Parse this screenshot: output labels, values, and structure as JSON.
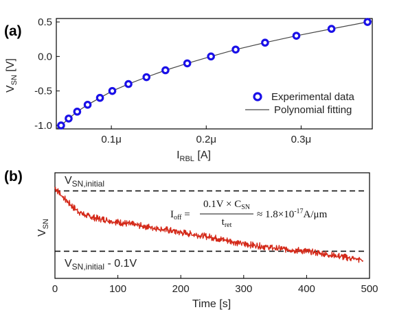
{
  "panel_labels": {
    "a": "(a)",
    "b": "(b)"
  },
  "colors": {
    "marker": "#1a10e8",
    "fit": "#444444",
    "trace": "#d42a1a",
    "axis": "#000000"
  },
  "chart_data": [
    {
      "id": "a",
      "type": "scatter",
      "xlabel": {
        "main": "I",
        "sub": "RBL",
        "tail": " [A]"
      },
      "ylabel": {
        "main": "V",
        "sub": "SN",
        "tail": " [V]"
      },
      "xlim": [
        0.042,
        0.375
      ],
      "ylim": [
        -1.05,
        0.55
      ],
      "x_unit_suffix": "μ",
      "xticks": [
        0.1,
        0.2,
        0.3
      ],
      "xtick_labels": [
        "0.1μ",
        "0.2μ",
        "0.3μ"
      ],
      "yticks": [
        0.5,
        0.0,
        -0.5,
        -1.0
      ],
      "ytick_labels": [
        "0.5",
        "0.0",
        "-0.5",
        "-1.0"
      ],
      "grid": false,
      "legend_position": "bottom-right",
      "series": [
        {
          "name": "Experimental data",
          "style": "markers",
          "x": [
            0.047,
            0.055,
            0.064,
            0.075,
            0.088,
            0.101,
            0.118,
            0.137,
            0.157,
            0.18,
            0.205,
            0.231,
            0.262,
            0.295,
            0.332,
            0.37
          ],
          "y": [
            -1.0,
            -0.9,
            -0.8,
            -0.7,
            -0.6,
            -0.5,
            -0.4,
            -0.3,
            -0.2,
            -0.1,
            0.0,
            0.1,
            0.2,
            0.3,
            0.4,
            0.5
          ]
        },
        {
          "name": "Polynomial fitting",
          "style": "line",
          "x": [
            0.042,
            0.047,
            0.055,
            0.064,
            0.075,
            0.088,
            0.101,
            0.118,
            0.137,
            0.157,
            0.18,
            0.205,
            0.231,
            0.262,
            0.295,
            0.332,
            0.37,
            0.375
          ],
          "y": [
            -1.06,
            -1.0,
            -0.9,
            -0.8,
            -0.7,
            -0.6,
            -0.5,
            -0.4,
            -0.3,
            -0.2,
            -0.1,
            0.0,
            0.1,
            0.2,
            0.3,
            0.4,
            0.5,
            0.512
          ]
        }
      ]
    },
    {
      "id": "b",
      "type": "line",
      "xlabel": "Time [s]",
      "ylabel": {
        "main": "V",
        "sub": "SN"
      },
      "xlim": [
        0,
        500
      ],
      "ylim": [
        -0.145,
        0.03
      ],
      "xticks": [
        0,
        100,
        200,
        300,
        400,
        500
      ],
      "xtick_labels": [
        "0",
        "100",
        "200",
        "300",
        "400",
        "500"
      ],
      "yticks": [],
      "grid": false,
      "reference_lines": [
        {
          "y": 0.0,
          "style": "dashed",
          "label": {
            "main": "V",
            "sub": "SN,initial",
            "tail": ""
          }
        },
        {
          "y": -0.1,
          "style": "dashed",
          "label": {
            "main": "V",
            "sub": "SN,initial",
            "tail": " - 0.1V"
          }
        }
      ],
      "annotation": {
        "lhs": "I",
        "lhs_sub": "off",
        "numerator": "0.1V × C",
        "numerator_sub": "SN",
        "denominator": "t",
        "denominator_sub": "ret",
        "rhs_prefix": "≈ 1.8×10",
        "rhs_exp": "-17",
        "rhs_unit": "A/μm"
      },
      "series": [
        {
          "name": "",
          "style": "noisy-line",
          "x": [
            0,
            10,
            20,
            30,
            40,
            50,
            60,
            80,
            100,
            120,
            150,
            180,
            200,
            250,
            300,
            330,
            350,
            400,
            450,
            490
          ],
          "y": [
            0.005,
            -0.007,
            -0.018,
            -0.028,
            -0.036,
            -0.041,
            -0.044,
            -0.048,
            -0.052,
            -0.055,
            -0.06,
            -0.065,
            -0.069,
            -0.077,
            -0.088,
            -0.092,
            -0.095,
            -0.1,
            -0.108,
            -0.115
          ]
        }
      ]
    }
  ]
}
